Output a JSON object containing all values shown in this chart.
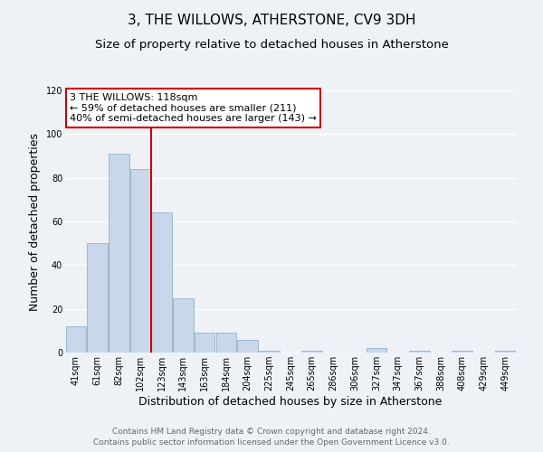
{
  "title": "3, THE WILLOWS, ATHERSTONE, CV9 3DH",
  "subtitle": "Size of property relative to detached houses in Atherstone",
  "xlabel": "Distribution of detached houses by size in Atherstone",
  "ylabel": "Number of detached properties",
  "all_bins": [
    "41sqm",
    "61sqm",
    "82sqm",
    "102sqm",
    "123sqm",
    "143sqm",
    "163sqm",
    "184sqm",
    "204sqm",
    "225sqm",
    "245sqm",
    "265sqm",
    "286sqm",
    "306sqm",
    "327sqm",
    "347sqm",
    "367sqm",
    "388sqm",
    "408sqm",
    "429sqm",
    "449sqm"
  ],
  "all_values": [
    12,
    50,
    91,
    84,
    64,
    25,
    9,
    9,
    6,
    1,
    0,
    1,
    0,
    0,
    2,
    0,
    1,
    0,
    1,
    0,
    1
  ],
  "bar_color": "#c8d8ea",
  "bar_edge_color": "#9ab8d0",
  "vline_x_index": 4,
  "vline_color": "#cc0000",
  "annotation_text": "3 THE WILLOWS: 118sqm\n← 59% of detached houses are smaller (211)\n40% of semi-detached houses are larger (143) →",
  "annotation_box_color": "#ffffff",
  "annotation_box_edge": "#cc0000",
  "ylim": [
    0,
    120
  ],
  "yticks": [
    0,
    20,
    40,
    60,
    80,
    100,
    120
  ],
  "footer_line1": "Contains HM Land Registry data © Crown copyright and database right 2024.",
  "footer_line2": "Contains public sector information licensed under the Open Government Licence v3.0.",
  "background_color": "#eef2f7",
  "plot_background": "#eef2f7",
  "title_fontsize": 11,
  "subtitle_fontsize": 9.5,
  "axis_label_fontsize": 9,
  "tick_fontsize": 7,
  "annotation_fontsize": 8,
  "footer_fontsize": 6.5
}
